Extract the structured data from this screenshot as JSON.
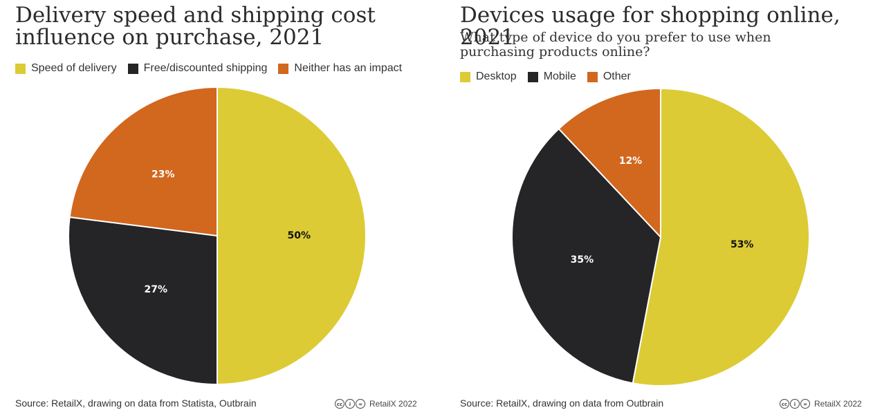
{
  "chart_data": [
    {
      "type": "pie",
      "title": "Delivery speed and shipping cost influence on purchase, 2021",
      "subtitle": "",
      "labels": [
        "Speed of delivery",
        "Free/discounted shipping",
        "Neither has an impact"
      ],
      "values": [
        50,
        27,
        23
      ],
      "value_labels": [
        "50%",
        "27%",
        "23%"
      ],
      "colors": [
        "#dccb35",
        "#252527",
        "#d2671e"
      ],
      "label_colors": [
        "#111111",
        "#ffffff",
        "#ffffff"
      ],
      "start_angle_deg": 0,
      "direction": "clockwise",
      "legend_position": "top-left",
      "source": "Source: RetailX, drawing on data from Statista, Outbrain",
      "brand": "RetailX 2022"
    },
    {
      "type": "pie",
      "title": "Devices usage for shopping online, 2021",
      "subtitle": "What type of device do you prefer to use when purchasing products online?",
      "labels": [
        "Desktop",
        "Mobile",
        "Other"
      ],
      "values": [
        53,
        35,
        12
      ],
      "value_labels": [
        "53%",
        "35%",
        "12%"
      ],
      "colors": [
        "#dccb35",
        "#252527",
        "#d2671e"
      ],
      "label_colors": [
        "#111111",
        "#ffffff",
        "#ffffff"
      ],
      "start_angle_deg": 0,
      "direction": "clockwise",
      "legend_position": "top-left",
      "source": "Source: RetailX, drawing on data from Outbrain",
      "brand": "RetailX 2022"
    }
  ],
  "license_icons": [
    "cc-icon",
    "by-icon",
    "equals-icon"
  ],
  "license_glyphs": [
    "cc",
    "i",
    "="
  ]
}
